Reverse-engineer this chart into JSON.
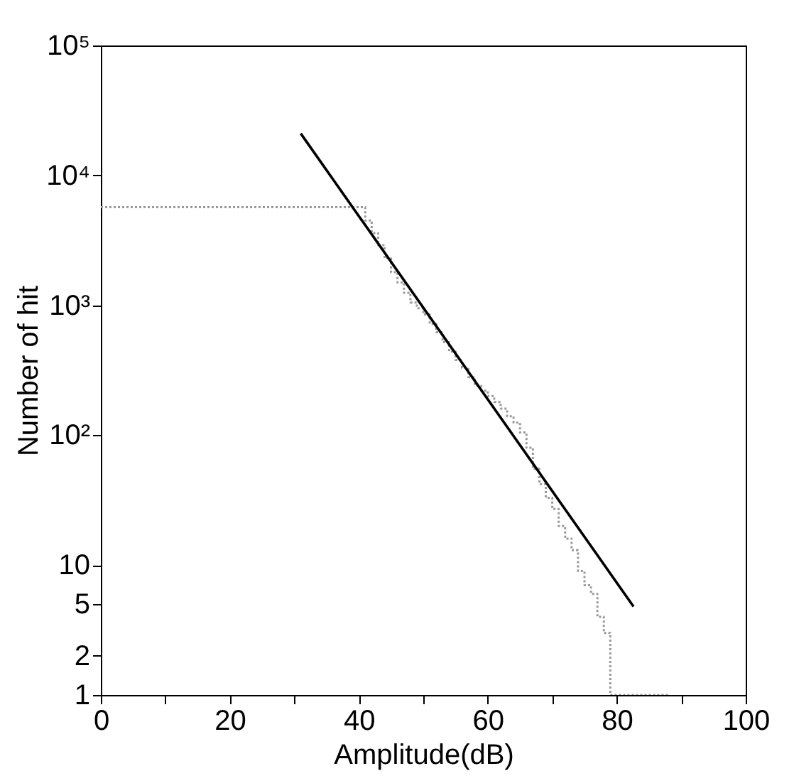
{
  "chart_data": {
    "type": "line",
    "xlabel": "Amplitude(dB)",
    "ylabel": "Number of hit",
    "log": "y",
    "xlim": [
      0,
      100
    ],
    "xticks": [
      0,
      {
        "value": 10,
        "label": null
      },
      20,
      {
        "value": 30,
        "label": null
      },
      40,
      {
        "value": 50,
        "label": null
      },
      60,
      {
        "value": 70,
        "label": null
      },
      80,
      {
        "value": 90,
        "label": null
      },
      100
    ],
    "ylim": [
      1,
      100000
    ],
    "yticks": [
      1,
      2,
      5,
      10,
      {
        "value": 100,
        "label": "10²"
      },
      {
        "value": 1000,
        "label": "10³"
      },
      {
        "value": 10000,
        "label": "10⁴"
      },
      {
        "value": 100000,
        "label": "10⁵"
      }
    ],
    "grid": false,
    "legend": false,
    "marker": "none",
    "series": [
      {
        "type": "step",
        "color": "#999999",
        "line_style": "dotted",
        "x": [
          0,
          41,
          42,
          43,
          44,
          45,
          46,
          47,
          48,
          49,
          50,
          51,
          52,
          53,
          54,
          55,
          56,
          57,
          58,
          59,
          60,
          61,
          62,
          63,
          64,
          65,
          66,
          67,
          68,
          69,
          70,
          71,
          72,
          73,
          74,
          75,
          76,
          77,
          78,
          79,
          88
        ],
        "values": [
          5700,
          4500,
          3600,
          2900,
          2300,
          1800,
          1500,
          1250,
          1050,
          950,
          850,
          720,
          620,
          520,
          440,
          380,
          330,
          280,
          240,
          220,
          200,
          180,
          160,
          140,
          125,
          105,
          80,
          55,
          42,
          33,
          27,
          20,
          16,
          13,
          9,
          7,
          6,
          4,
          3,
          1,
          1
        ]
      },
      {
        "type": "line",
        "color": "#000000",
        "line_style": "solid",
        "x": [
          31,
          82.6
        ],
        "values": [
          21000,
          4.8
        ]
      }
    ]
  }
}
